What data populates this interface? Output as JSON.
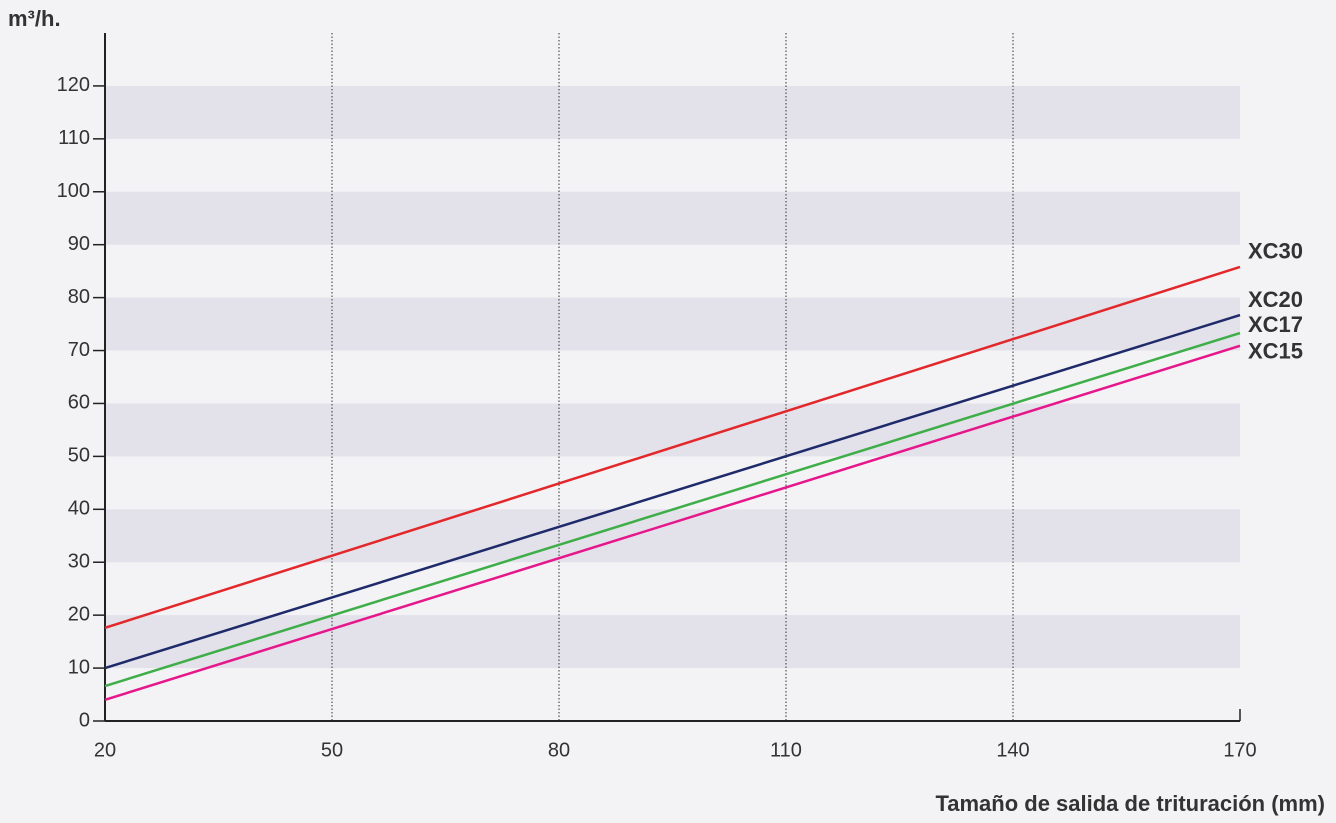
{
  "chart_data": {
    "type": "line",
    "y_label": "m³/h.",
    "x_label": "Tamaño de salida de trituración (mm)",
    "x": [
      20,
      170
    ],
    "series": [
      {
        "name": "XC30",
        "color": "#e2282b",
        "values": [
          17.6,
          85.8
        ]
      },
      {
        "name": "XC20",
        "color": "#1f2a6b",
        "values": [
          10.0,
          76.7
        ]
      },
      {
        "name": "XC17",
        "color": "#3fae49",
        "values": [
          6.6,
          73.3
        ]
      },
      {
        "name": "XC15",
        "color": "#e5178a",
        "values": [
          4.0,
          70.9
        ]
      }
    ],
    "xlim": [
      20,
      170
    ],
    "xticks": [
      20,
      50,
      80,
      110,
      140,
      170
    ],
    "ylim": [
      0,
      130
    ],
    "yticks": [
      0,
      10,
      20,
      30,
      40,
      50,
      60,
      70,
      80,
      90,
      100,
      110,
      120
    ],
    "grid": true
  }
}
